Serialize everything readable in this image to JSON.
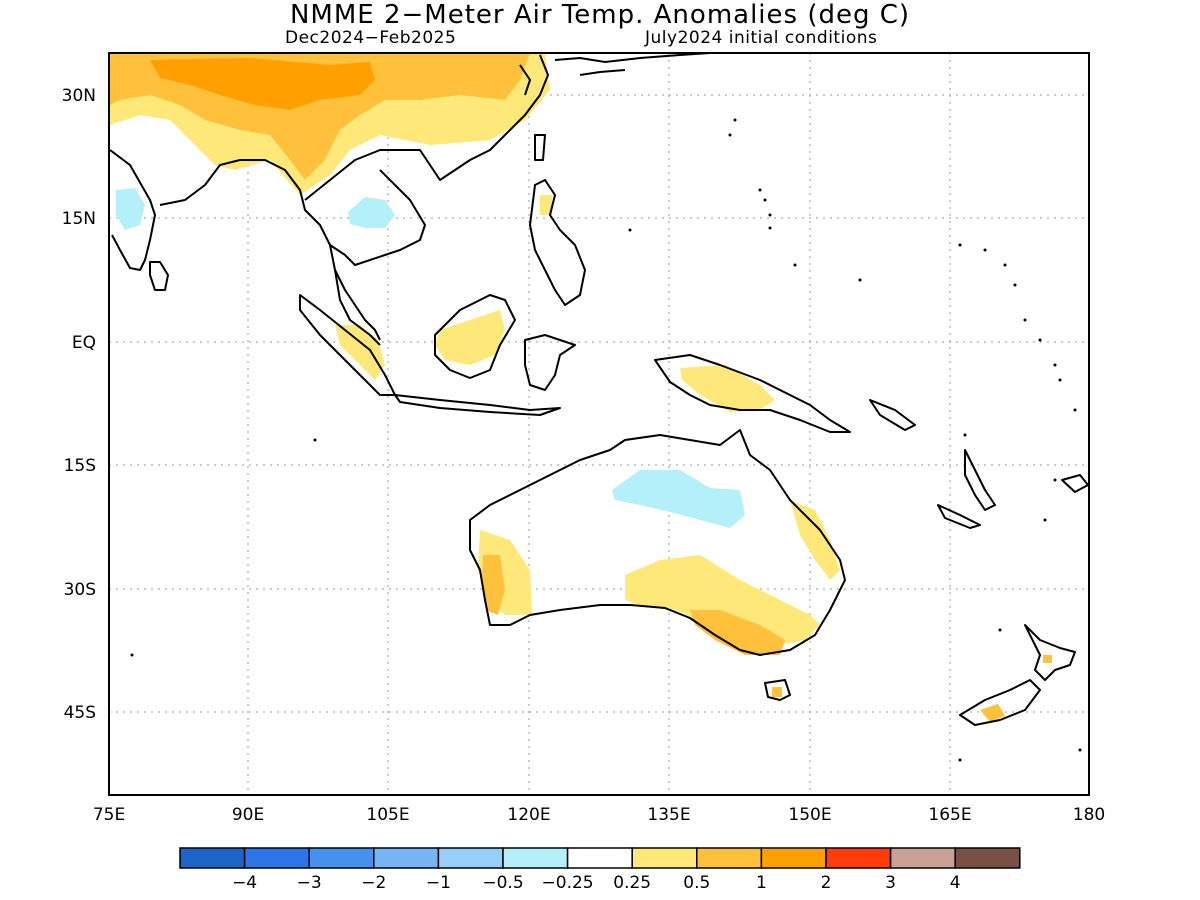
{
  "title": "NMME 2−Meter Air Temp. Anomalies (deg C)",
  "subtitle_left": "Dec2024−Feb2025",
  "subtitle_right": "July2024 initial conditions",
  "x_ticks": [
    "75E",
    "90E",
    "105E",
    "120E",
    "135E",
    "150E",
    "165E",
    "180"
  ],
  "y_ticks": [
    "30N",
    "15N",
    "EQ",
    "15S",
    "30S",
    "45S"
  ],
  "colorbar": {
    "colors": [
      "#1c64c8",
      "#2d74e6",
      "#4592ee",
      "#76b4f4",
      "#96d0fa",
      "#b4f0fa",
      "#ffffff",
      "#ffe87a",
      "#ffc03c",
      "#ffa000",
      "#ff3c0a",
      "#c8a096",
      "#785046"
    ],
    "labels": [
      "−4",
      "−3",
      "−2",
      "−1",
      "−0.5",
      "−0.25",
      "0.25",
      "0.5",
      "1",
      "2",
      "3",
      "4"
    ]
  }
}
